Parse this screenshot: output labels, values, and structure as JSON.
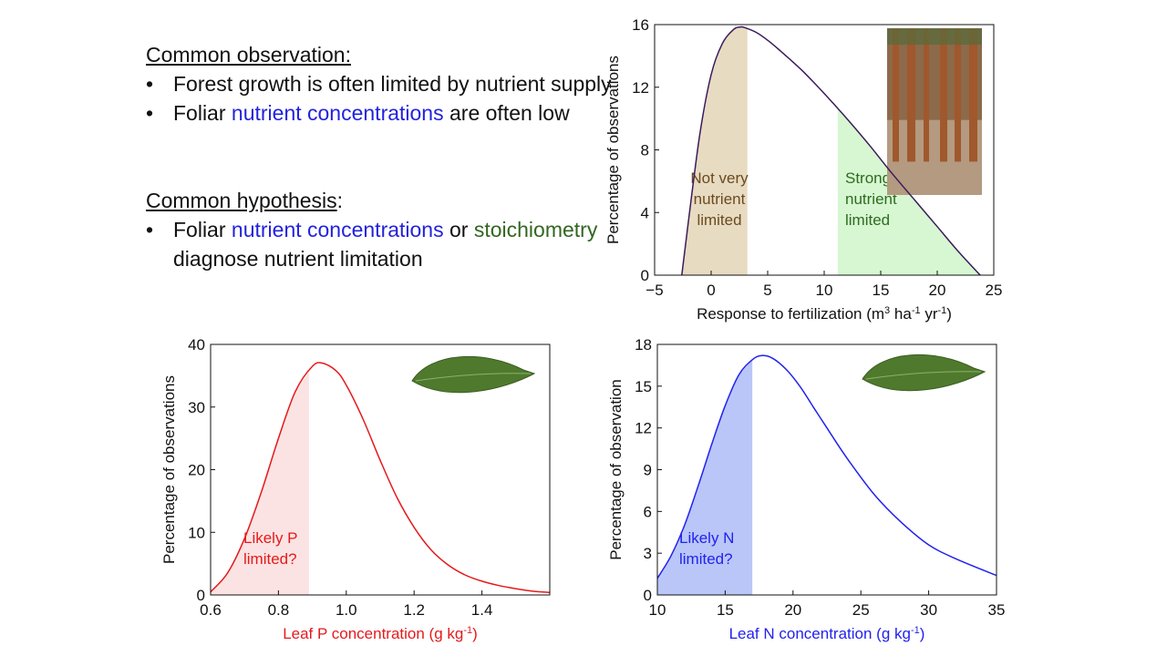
{
  "observation": {
    "heading": "Common observation:",
    "bullets": [
      {
        "parts": [
          "Forest growth is often limited by nutrient supply"
        ]
      },
      {
        "parts": [
          "Foliar ",
          "nutrient concentrations",
          " are often low"
        ]
      }
    ]
  },
  "hypothesis": {
    "heading": "Common hypothesis",
    "heading_suffix": ":",
    "bullets": [
      {
        "parts": [
          "Foliar ",
          "nutrient concentrations",
          " or ",
          "stoichiometry",
          " diagnose nutrient limitation"
        ]
      }
    ]
  },
  "colors": {
    "text": "#111111",
    "blue_text": "#2222dd",
    "green_text": "#336622",
    "growth_curve": "#3b1b5a",
    "not_limited_fill": "#e7dbc2",
    "not_limited_text": "#6b4a1e",
    "strongly_limited_fill": "#d6f7d2",
    "strongly_limited_text": "#2f6b1f",
    "p_curve": "#e41a1c",
    "p_fill": "#fbe3e3",
    "n_curve": "#2222ee",
    "n_fill": "#b9c6f7"
  },
  "chart_data": [
    {
      "id": "growth",
      "type": "line",
      "title": "",
      "ylabel": "Percentage of observations",
      "xlabel": "Response to fertilization (m",
      "xlabel_units": [
        "3",
        " ha",
        "-1",
        " yr",
        "-1",
        ")"
      ],
      "xlim": [
        -5,
        25
      ],
      "ylim": [
        0,
        16
      ],
      "xticks": [
        -5,
        0,
        5,
        10,
        15,
        20,
        25
      ],
      "xtick_labels": [
        "−5",
        "0",
        "5",
        "10",
        "15",
        "20",
        "25"
      ],
      "yticks": [
        0,
        4,
        8,
        12,
        16
      ],
      "ytick_labels": [
        "0",
        "4",
        "8",
        "12",
        "16"
      ],
      "series": [
        {
          "name": "response distribution",
          "x": [
            -2.6,
            -2.0,
            -1.0,
            0,
            1,
            2,
            2.6,
            3,
            4,
            5,
            6,
            8,
            10,
            12,
            14,
            16,
            18,
            20,
            22,
            23.8
          ],
          "values": [
            0,
            3.5,
            9.0,
            12.8,
            14.8,
            15.7,
            15.85,
            15.8,
            15.5,
            15.0,
            14.4,
            13.1,
            11.6,
            10.0,
            8.3,
            6.5,
            4.8,
            3.1,
            1.4,
            0
          ]
        }
      ],
      "shaded_regions": [
        {
          "name": "not-very-limited",
          "x_range": [
            -2.6,
            3.2
          ],
          "label_lines": [
            "Not very",
            "nutrient",
            "limited"
          ]
        },
        {
          "name": "strongly-limited",
          "x_range": [
            11.2,
            23.8
          ],
          "label_lines": [
            "Strongly",
            "nutrient",
            "limited"
          ]
        }
      ]
    },
    {
      "id": "leaf-p",
      "type": "line",
      "title": "",
      "ylabel": "Percentage of observations",
      "xlabel": "Leaf P concentration (g kg",
      "xlabel_units": [
        "-1",
        ")"
      ],
      "xlim": [
        0.6,
        1.6
      ],
      "ylim": [
        0,
        40
      ],
      "xticks": [
        0.6,
        0.8,
        1.0,
        1.2,
        1.4
      ],
      "xtick_labels": [
        "0.6",
        "0.8",
        "1.0",
        "1.2",
        "1.4"
      ],
      "yticks": [
        0,
        10,
        20,
        30,
        40
      ],
      "ytick_labels": [
        "0",
        "10",
        "20",
        "30",
        "40"
      ],
      "series": [
        {
          "name": "leaf P distribution",
          "x": [
            0.6,
            0.65,
            0.7,
            0.75,
            0.8,
            0.85,
            0.9,
            0.93,
            0.97,
            1.0,
            1.05,
            1.1,
            1.15,
            1.2,
            1.25,
            1.3,
            1.35,
            1.4,
            1.45,
            1.5,
            1.55,
            1.6
          ],
          "values": [
            0.5,
            3.5,
            9.0,
            16.5,
            25.0,
            32.5,
            36.5,
            37.0,
            35.8,
            33.5,
            28.0,
            21.5,
            15.5,
            10.8,
            7.2,
            4.8,
            3.2,
            2.2,
            1.5,
            1.0,
            0.6,
            0.4
          ]
        }
      ],
      "shaded_regions": [
        {
          "name": "likely-p-limited",
          "x_range": [
            0.6,
            0.89
          ],
          "label_lines": [
            "Likely P",
            "limited?"
          ]
        }
      ]
    },
    {
      "id": "leaf-n",
      "type": "line",
      "title": "",
      "ylabel": "Percentage of observation",
      "xlabel": "Leaf N concentration (g kg",
      "xlabel_units": [
        "-1",
        ")"
      ],
      "xlim": [
        10,
        35
      ],
      "ylim": [
        0,
        18
      ],
      "xticks": [
        10,
        15,
        20,
        25,
        30,
        35
      ],
      "xtick_labels": [
        "10",
        "15",
        "20",
        "25",
        "30",
        "35"
      ],
      "yticks": [
        0,
        3,
        6,
        9,
        12,
        15,
        18
      ],
      "ytick_labels": [
        "0",
        "3",
        "6",
        "9",
        "12",
        "15",
        "18"
      ],
      "series": [
        {
          "name": "leaf N distribution",
          "x": [
            10,
            11,
            12,
            13,
            14,
            15,
            16,
            17,
            17.7,
            18.5,
            19.5,
            20.5,
            21.5,
            22.5,
            24,
            26,
            28,
            30,
            32,
            35
          ],
          "values": [
            1.2,
            2.8,
            5.0,
            7.8,
            10.8,
            13.6,
            15.8,
            16.9,
            17.2,
            17.0,
            16.2,
            15.0,
            13.5,
            12.0,
            9.8,
            7.2,
            5.2,
            3.6,
            2.6,
            1.4
          ]
        }
      ],
      "shaded_regions": [
        {
          "name": "likely-n-limited",
          "x_range": [
            10,
            17
          ],
          "label_lines": [
            "Likely N",
            "limited?"
          ]
        }
      ]
    }
  ]
}
